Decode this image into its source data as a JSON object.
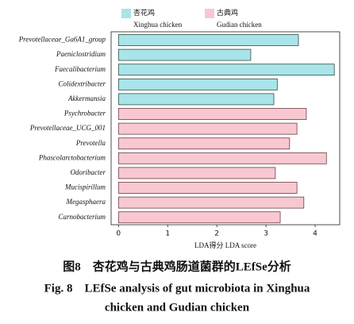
{
  "chart_data": {
    "type": "barh",
    "categories": [
      "Prevotellaceae_Ga6A1_group",
      "Paeniclostridium",
      "Faecalibacterium",
      "Colidextribacter",
      "Akkermansia",
      "Psychrobacter",
      "Prevotellaceae_UCG_001",
      "Prevotella",
      "Phascolarctobacterium",
      "Odoribacter",
      "Mucispirillum",
      "Megasphaera",
      "Carnobacterium"
    ],
    "series": [
      {
        "name": "杏花鸡",
        "name_en": "Xinghua chicken",
        "color": "#a8e4ea",
        "values": [
          3.66,
          2.69,
          4.39,
          3.23,
          3.16,
          null,
          null,
          null,
          null,
          null,
          null,
          null,
          null
        ]
      },
      {
        "name": "古典鸡",
        "name_en": "Gudian chicken",
        "color": "#f8c8d0",
        "values": [
          null,
          null,
          null,
          null,
          null,
          3.82,
          3.63,
          3.48,
          4.23,
          3.19,
          3.63,
          3.77,
          3.29
        ]
      }
    ],
    "xlabel": "LDA得分 LDA score",
    "xlim": [
      -0.15,
      4.5
    ],
    "xticks": [
      0,
      1,
      2,
      3,
      4
    ],
    "caption_cn": "图8　杏花鸡与古典鸡肠道菌群的LEfSe分析",
    "caption_en": [
      "Fig. 8　LEfSe analysis of gut microbiota in Xinghua",
      "chicken and Gudian chicken"
    ]
  }
}
